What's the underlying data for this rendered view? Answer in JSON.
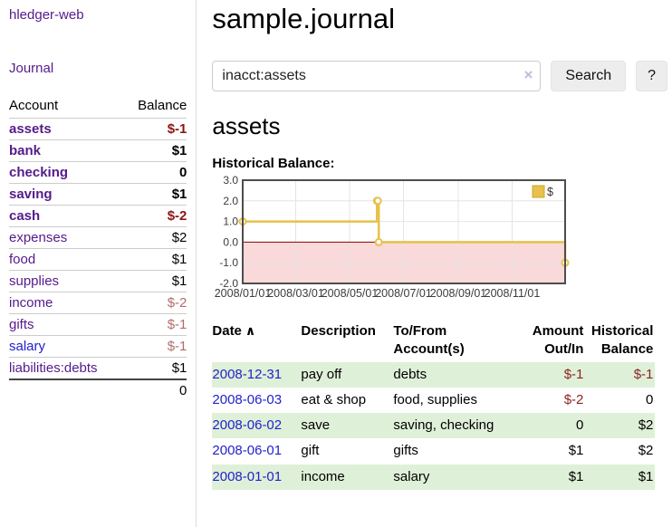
{
  "app": {
    "brand": "hledger-web",
    "nav_journal": "Journal"
  },
  "colors": {
    "link_purple": "#551a8b",
    "link_blue": "#2222cc",
    "negative_strong": "#8b1515",
    "negative_soft": "#b36b6b",
    "negative_table": "#8b2323",
    "row_green": "#dff0d8",
    "chart_gold": "#e7c14b"
  },
  "sidebar": {
    "col_account": "Account",
    "col_balance": "Balance",
    "accounts": [
      {
        "name": "assets",
        "depth": 1,
        "bold": true,
        "balance": "$-1",
        "neg": "strong"
      },
      {
        "name": "bank",
        "depth": 2,
        "bold": true,
        "balance": "$1"
      },
      {
        "name": "checking",
        "depth": 3,
        "bold": true,
        "balance": "0"
      },
      {
        "name": "saving",
        "depth": 3,
        "bold": true,
        "balance": "$1"
      },
      {
        "name": "cash",
        "depth": 2,
        "bold": true,
        "balance": "$-2",
        "neg": "strong"
      },
      {
        "name": "expenses",
        "depth": 1,
        "bold": false,
        "balance": "$2"
      },
      {
        "name": "food",
        "depth": 2,
        "bold": false,
        "balance": "$1"
      },
      {
        "name": "supplies",
        "depth": 2,
        "bold": false,
        "balance": "$1"
      },
      {
        "name": "income",
        "depth": 1,
        "bold": false,
        "balance": "$-2",
        "neg": "soft"
      },
      {
        "name": "gifts",
        "depth": 2,
        "bold": false,
        "balance": "$-1",
        "neg": "soft"
      },
      {
        "name": "salary",
        "depth": 2,
        "bold": false,
        "balance": "$-1",
        "neg": "soft",
        "link": "blue"
      },
      {
        "name": "liabilities:debts",
        "depth": 1,
        "bold": false,
        "balance": "$1"
      }
    ],
    "total": "0"
  },
  "header": {
    "title": "sample.journal"
  },
  "search": {
    "value": "inacct:assets",
    "clear_icon": "×",
    "button_label": "Search",
    "help_label": "?"
  },
  "account_page": {
    "title": "assets",
    "chart_label": "Historical Balance:"
  },
  "chart_data": {
    "type": "line",
    "step": true,
    "title": "Historical Balance",
    "legend_label": "$",
    "legend_position": "top-right",
    "x_range": [
      "2008-01-01",
      "2008-12-31"
    ],
    "ylim": [
      -2,
      3
    ],
    "yticks": [
      3,
      2,
      1,
      0,
      -1,
      -2
    ],
    "xticks": [
      "2008/01/01",
      "2008/03/01",
      "2008/05/01",
      "2008/07/01",
      "2008/09/01",
      "2008/11/01"
    ],
    "series": [
      {
        "name": "$",
        "points": [
          {
            "date": "2008-01-01",
            "value": 1
          },
          {
            "date": "2008-06-01",
            "value": 2
          },
          {
            "date": "2008-06-02",
            "value": 2
          },
          {
            "date": "2008-06-03",
            "value": 0
          },
          {
            "date": "2008-12-31",
            "value": -1
          }
        ]
      }
    ],
    "colors": {
      "line": "#e7c14b",
      "marker_fill": "#ffffff",
      "negative_region": "#f9d9d9",
      "zero_line": "#8b0000",
      "grid": "#e4e4e4",
      "border": "#4d4d4d",
      "legend_fill": "#e7c14b",
      "legend_border": "#c9a82c",
      "tick_text": "#3c3c3c"
    }
  },
  "register": {
    "columns": {
      "date": "Date",
      "sort_icon": "∧",
      "description": "Description",
      "accounts": "To/From Account(s)",
      "amount": "Amount Out/In",
      "balance": "Historical Balance"
    },
    "rows": [
      {
        "date": "2008-12-31",
        "description": "pay off",
        "accounts": "debts",
        "amount": "$-1",
        "amount_neg": true,
        "balance": "$-1",
        "balance_neg": true
      },
      {
        "date": "2008-06-03",
        "description": "eat & shop",
        "accounts": "food, supplies",
        "amount": "$-2",
        "amount_neg": true,
        "balance": "0",
        "balance_neg": false
      },
      {
        "date": "2008-06-02",
        "description": "save",
        "accounts": "saving, checking",
        "amount": "0",
        "amount_neg": false,
        "balance": "$2",
        "balance_neg": false
      },
      {
        "date": "2008-06-01",
        "description": "gift",
        "accounts": "gifts",
        "amount": "$1",
        "amount_neg": false,
        "balance": "$2",
        "balance_neg": false
      },
      {
        "date": "2008-01-01",
        "description": "income",
        "accounts": "salary",
        "amount": "$1",
        "amount_neg": false,
        "balance": "$1",
        "balance_neg": false
      }
    ]
  }
}
